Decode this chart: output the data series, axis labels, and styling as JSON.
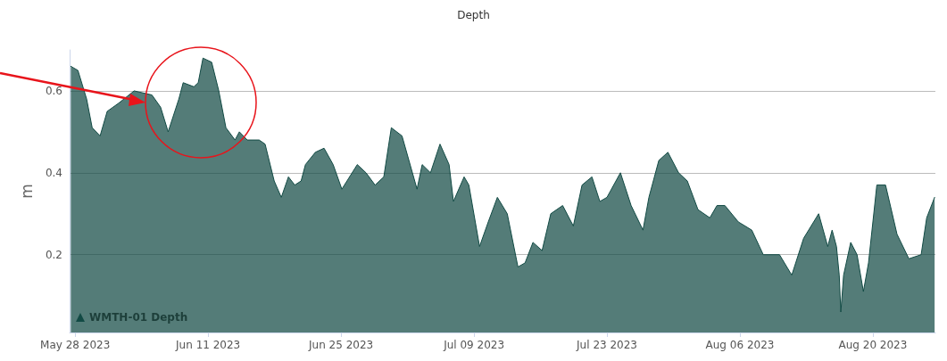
{
  "chart_data": {
    "type": "area",
    "title": "Depth",
    "ylabel": "m",
    "legend": "bottom left",
    "grid": "y",
    "marker": "none",
    "line_style": "solid",
    "xlim": [
      "2023-05-27T10:00",
      "2023-08-26T14:00"
    ],
    "xticks": [
      {
        "value": "2023-05-28",
        "label": "May 28 2023"
      },
      {
        "value": "2023-06-11",
        "label": "Jun 11 2023"
      },
      {
        "value": "2023-06-25",
        "label": "Jun 25 2023"
      },
      {
        "value": "2023-07-09",
        "label": "Jul 09 2023"
      },
      {
        "value": "2023-07-23",
        "label": "Jul 23 2023"
      },
      {
        "value": "2023-08-06",
        "label": "Aug 06 2023"
      },
      {
        "value": "2023-08-20",
        "label": "Aug 20 2023"
      }
    ],
    "ylim": [
      0.01,
      0.7
    ],
    "yticks": [
      0.2,
      0.4,
      0.6
    ],
    "series": [
      {
        "name": "WMTH-01 Depth",
        "color": "#124a44",
        "x": [
          "2023-05-27T13:00",
          "2023-05-28T07:00",
          "2023-05-29T05:00",
          "2023-05-29T19:00",
          "2023-05-30T15:00",
          "2023-05-31T09:00",
          "2023-06-01T14:00",
          "2023-06-03T05:00",
          "2023-06-05T02:00",
          "2023-06-06T00:00",
          "2023-06-06T19:00",
          "2023-06-07T22:00",
          "2023-06-08T09:00",
          "2023-06-09T12:00",
          "2023-06-09T23:00",
          "2023-06-10T11:00",
          "2023-06-11T09:00",
          "2023-06-12T03:00",
          "2023-06-12T21:00",
          "2023-06-13T20:00",
          "2023-06-14T07:00",
          "2023-06-15T03:00",
          "2023-06-16T09:00",
          "2023-06-17T00:00",
          "2023-06-17T23:00",
          "2023-06-18T17:00",
          "2023-06-19T11:00",
          "2023-06-20T03:00",
          "2023-06-20T19:00",
          "2023-06-21T06:00",
          "2023-06-22T07:00",
          "2023-06-23T05:00",
          "2023-06-24T04:00",
          "2023-06-25T02:00",
          "2023-06-26T17:00",
          "2023-06-27T15:00",
          "2023-06-28T14:00",
          "2023-06-29T12:00",
          "2023-06-30T07:00",
          "2023-07-01T10:00",
          "2023-07-03T00:00",
          "2023-07-03T13:00",
          "2023-07-04T10:00",
          "2023-07-05T10:00",
          "2023-07-06T09:00",
          "2023-07-06T20:00",
          "2023-07-07T23:00",
          "2023-07-08T11:00",
          "2023-07-09T14:00",
          "2023-07-10T12:00",
          "2023-07-11T11:00",
          "2023-07-12T12:00",
          "2023-07-13T15:00",
          "2023-07-14T09:00",
          "2023-07-15T05:00",
          "2023-07-16T04:00",
          "2023-07-17T02:00",
          "2023-07-18T08:00",
          "2023-07-19T11:00",
          "2023-07-20T09:00",
          "2023-07-21T10:00",
          "2023-07-22T06:00",
          "2023-07-23T00:00",
          "2023-07-24T10:00",
          "2023-07-25T13:00",
          "2023-07-26T19:00",
          "2023-07-27T10:00",
          "2023-07-28T11:00",
          "2023-07-29T10:00",
          "2023-07-30T13:00",
          "2023-07-31T11:00",
          "2023-08-01T14:00",
          "2023-08-02T20:00",
          "2023-08-03T14:00",
          "2023-08-04T10:00",
          "2023-08-05T20:00",
          "2023-08-07T06:00",
          "2023-08-08T11:00",
          "2023-08-10T04:00",
          "2023-08-11T11:00",
          "2023-08-12T17:00",
          "2023-08-14T07:00",
          "2023-08-15T06:00",
          "2023-08-15T17:00",
          "2023-08-16T04:00",
          "2023-08-16T11:00",
          "2023-08-16T15:00",
          "2023-08-16T22:00",
          "2023-08-17T16:00",
          "2023-08-18T08:00",
          "2023-08-19T00:00",
          "2023-08-19T13:00",
          "2023-08-20T10:00",
          "2023-08-21T08:00",
          "2023-08-22T13:00",
          "2023-08-23T19:00",
          "2023-08-25T02:00",
          "2023-08-25T16:00",
          "2023-08-26T12:00"
        ],
        "values": [
          0.66,
          0.65,
          0.58,
          0.51,
          0.49,
          0.55,
          0.57,
          0.6,
          0.59,
          0.56,
          0.5,
          0.58,
          0.62,
          0.61,
          0.62,
          0.68,
          0.67,
          0.6,
          0.51,
          0.48,
          0.5,
          0.48,
          0.48,
          0.47,
          0.38,
          0.34,
          0.39,
          0.37,
          0.38,
          0.42,
          0.45,
          0.46,
          0.42,
          0.36,
          0.42,
          0.4,
          0.37,
          0.39,
          0.51,
          0.49,
          0.36,
          0.42,
          0.4,
          0.47,
          0.42,
          0.33,
          0.39,
          0.37,
          0.22,
          0.28,
          0.34,
          0.3,
          0.17,
          0.18,
          0.23,
          0.21,
          0.3,
          0.32,
          0.27,
          0.37,
          0.39,
          0.33,
          0.34,
          0.4,
          0.32,
          0.26,
          0.34,
          0.43,
          0.45,
          0.4,
          0.38,
          0.31,
          0.29,
          0.32,
          0.32,
          0.28,
          0.26,
          0.2,
          0.2,
          0.15,
          0.24,
          0.3,
          0.22,
          0.26,
          0.22,
          0.15,
          0.06,
          0.15,
          0.23,
          0.2,
          0.11,
          0.18,
          0.37,
          0.37,
          0.25,
          0.19,
          0.2,
          0.29,
          0.34
        ]
      }
    ]
  }
}
